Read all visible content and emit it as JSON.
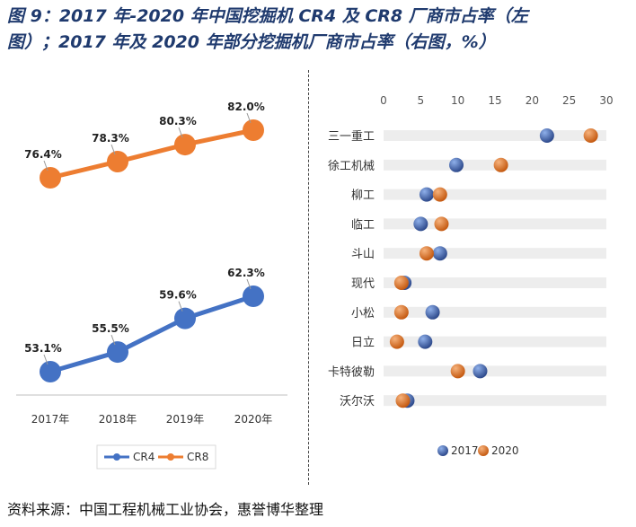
{
  "figure": {
    "title_line1": "图 9：2017 年-2020 年中国挖掘机 CR4 及 CR8 厂商市占率（左",
    "title_line2": "图）；2017 年及 2020 年部分挖掘机厂商市占率（右图，%）",
    "source": "资料来源：中国工程机械工业协会，惠誉博华整理"
  },
  "colors": {
    "cr4": "#4472c4",
    "cr8": "#ed7d31",
    "dot2017": "#2e4a8c",
    "dot2020": "#c55a11",
    "band": "#ededed"
  },
  "chart_data": [
    {
      "type": "line",
      "categories": [
        "2017年",
        "2018年",
        "2019年",
        "2020年"
      ],
      "series": [
        {
          "name": "CR4",
          "values": [
            53.1,
            55.5,
            59.6,
            62.3
          ],
          "labels": [
            "53.1%",
            "55.5%",
            "59.6%",
            "62.3%"
          ]
        },
        {
          "name": "CR8",
          "values": [
            76.4,
            78.3,
            80.3,
            82.0
          ],
          "labels": [
            "76.4%",
            "78.3%",
            "80.3%",
            "82.0%"
          ]
        }
      ],
      "legend": "bottom"
    },
    {
      "type": "scatter",
      "categories": [
        "三一重工",
        "徐工机械",
        "柳工",
        "临工",
        "斗山",
        "现代",
        "小松",
        "日立",
        "卡特彼勒",
        "沃尔沃"
      ],
      "series": [
        {
          "name": "2017",
          "values": [
            22.0,
            9.8,
            5.8,
            5.0,
            7.6,
            2.8,
            6.6,
            5.6,
            13.0,
            3.2
          ]
        },
        {
          "name": "2020",
          "values": [
            27.9,
            15.8,
            7.6,
            7.8,
            5.8,
            2.4,
            2.4,
            1.8,
            10.0,
            2.6
          ]
        }
      ],
      "x_ticks": [
        "0",
        "5",
        "10",
        "15",
        "20",
        "25",
        "30"
      ],
      "xlim": [
        0,
        30
      ],
      "legend": "bottom"
    }
  ]
}
